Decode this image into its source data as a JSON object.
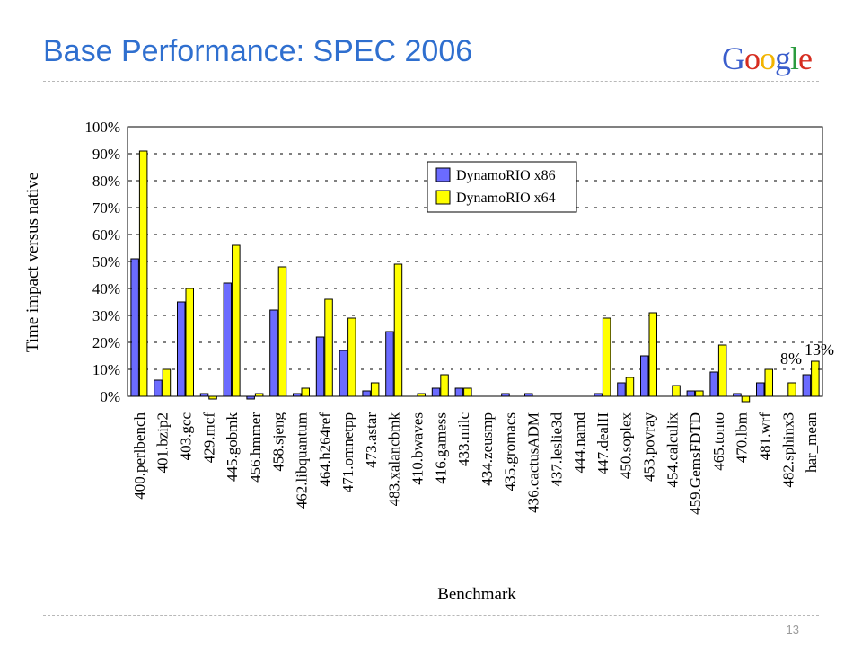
{
  "slide": {
    "title": "Base Performance: SPEC 2006",
    "logo": {
      "letters": [
        "G",
        "o",
        "o",
        "g",
        "l",
        "e"
      ],
      "colors": [
        "#3b5ecc",
        "#d62d20",
        "#f2b400",
        "#3b5ecc",
        "#2a9b3e",
        "#d62d20"
      ]
    },
    "page_number": "13"
  },
  "chart_data": {
    "type": "bar",
    "title": "",
    "xlabel": "Benchmark",
    "ylabel": "Time impact versus native",
    "ylim": [
      0,
      100
    ],
    "yticks": [
      "0%",
      "10%",
      "20%",
      "30%",
      "40%",
      "50%",
      "60%",
      "70%",
      "80%",
      "90%",
      "100%"
    ],
    "grid": true,
    "legend": "top-center",
    "categories": [
      "400.perlbench",
      "401.bzip2",
      "403.gcc",
      "429.mcf",
      "445.gobmk",
      "456.hmmer",
      "458.sjeng",
      "462.libquantum",
      "464.h264ref",
      "471.omnetpp",
      "473.astar",
      "483.xalancbmk",
      "410.bwaves",
      "416.gamess",
      "433.milc",
      "434.zeusmp",
      "435.gromacs",
      "436.cactusADM",
      "437.leslie3d",
      "444.namd",
      "447.dealII",
      "450.soplex",
      "453.povray",
      "454.calculix",
      "459.GemsFDTD",
      "465.tonto",
      "470.lbm",
      "481.wrf",
      "482.sphinx3",
      "har_mean"
    ],
    "series": [
      {
        "name": "DynamoRIO x86",
        "color": "#6b6bff",
        "values": [
          51,
          6,
          35,
          1,
          42,
          -1,
          32,
          1,
          22,
          17,
          2,
          24,
          0,
          3,
          3,
          0,
          1,
          1,
          0,
          0,
          1,
          5,
          15,
          0,
          2,
          9,
          1,
          5,
          0,
          8
        ]
      },
      {
        "name": "DynamoRIO x64",
        "color": "#ffff00",
        "values": [
          91,
          10,
          40,
          -1,
          56,
          1,
          48,
          3,
          36,
          29,
          5,
          49,
          1,
          8,
          3,
          0,
          0,
          0,
          0,
          0,
          29,
          7,
          31,
          4,
          2,
          19,
          -2,
          10,
          5,
          13
        ]
      }
    ],
    "annotations": [
      "8%",
      "13%"
    ]
  }
}
